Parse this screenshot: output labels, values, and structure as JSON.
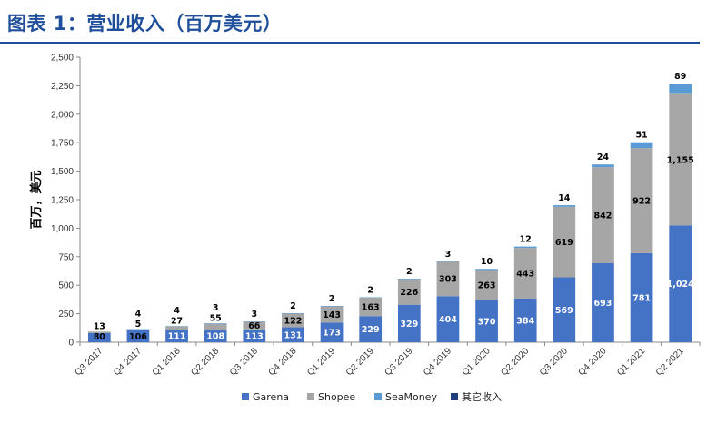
{
  "title": "图表 1：营业收入（百万美元）",
  "chart_data": {
    "type": "bar",
    "stacked": true,
    "ylabel": "百万，美元",
    "ylim": [
      0,
      2500
    ],
    "yticks": [
      "0",
      "250",
      "500",
      "750",
      "1,000",
      "1,250",
      "1,500",
      "1,750",
      "2,000",
      "2,250",
      "2,500"
    ],
    "categories": [
      "Q3 2017",
      "Q4 2017",
      "Q1 2018",
      "Q2 2018",
      "Q3 2018",
      "Q4 2018",
      "Q1 2019",
      "Q2 2019",
      "Q3 2019",
      "Q4 2019",
      "Q1 2020",
      "Q2 2020",
      "Q3 2020",
      "Q4 2020",
      "Q1 2021",
      "Q2 2021"
    ],
    "series": [
      {
        "name": "Garena",
        "color": "#4472c4",
        "values": [
          80,
          106,
          111,
          108,
          113,
          131,
          173,
          229,
          329,
          404,
          370,
          384,
          569,
          693,
          781,
          1024
        ],
        "labels": [
          "80",
          "106",
          "111",
          "108",
          "113",
          "131",
          "173",
          "229",
          "329",
          "404",
          "370",
          "384",
          "569",
          "693",
          "781",
          "1,024"
        ]
      },
      {
        "name": "Shopee",
        "color": "#a6a6a6",
        "values": [
          13,
          5,
          27,
          55,
          66,
          122,
          143,
          163,
          226,
          303,
          263,
          443,
          619,
          842,
          922,
          1155
        ],
        "labels": [
          "13",
          "5",
          "27",
          "55",
          "66",
          "122",
          "143",
          "163",
          "226",
          "303",
          "263",
          "443",
          "619",
          "842",
          "922",
          "1,155"
        ]
      },
      {
        "name": "SeaMoney",
        "color": "#5b9bd5",
        "values": [
          0,
          4,
          4,
          3,
          3,
          2,
          2,
          2,
          2,
          3,
          10,
          12,
          14,
          24,
          51,
          89
        ],
        "labels": [
          "",
          "4",
          "4",
          "3",
          "3",
          "2",
          "2",
          "2",
          "2",
          "3",
          "10",
          "12",
          "14",
          "24",
          "51",
          "89"
        ]
      },
      {
        "name": "其它收入",
        "color": "#1f3d7a",
        "values": [
          8,
          6,
          3,
          4,
          4,
          5,
          5,
          8,
          10,
          12,
          15,
          10,
          12,
          15,
          18,
          20
        ],
        "labels": [
          "",
          "",
          "",
          "",
          "",
          "",
          "",
          "",
          "",
          "",
          "",
          "",
          "",
          "",
          "",
          ""
        ]
      }
    ],
    "legend": {
      "position": "bottom"
    },
    "grid": false
  }
}
